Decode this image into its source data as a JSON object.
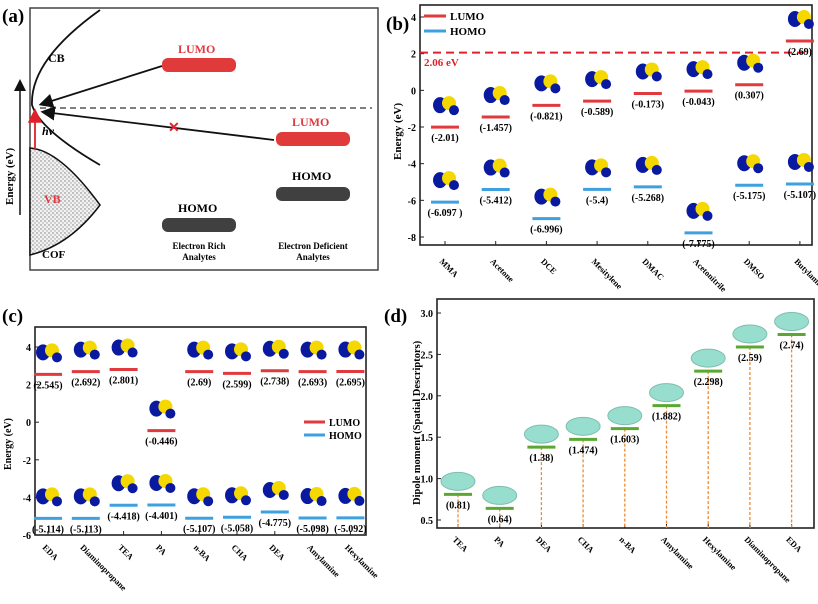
{
  "colors": {
    "lumo": "#e0393e",
    "homo": "#3fa0e0",
    "dipole_bar": "#5aa832",
    "threshold": "#e0202a",
    "orbital_pos": "#f5d800",
    "orbital_neg": "#0a1aa0",
    "surface": "#7fd6c4"
  },
  "panel_a": {
    "label": "(a)",
    "ylabel": "Energy (eV)",
    "cb": "CB",
    "vb": "VB",
    "cof": "COF",
    "hv": "hv",
    "rich_lumo": "LUMO",
    "rich_homo": "HOMO",
    "deficient_lumo": "LUMO",
    "deficient_homo": "HOMO",
    "rich_caption": [
      "Electron Rich",
      "Analytes"
    ],
    "deficient_caption": [
      "Electron Deficient",
      "Analytes"
    ]
  },
  "chart_data": [
    {
      "panel": "(b)",
      "type": "scatter",
      "ylabel": "Energy (eV)",
      "ylim": [
        -8.5,
        4.6
      ],
      "yticks": [
        4,
        2,
        0,
        -2,
        -4,
        -6,
        -8
      ],
      "categories": [
        "MMA",
        "Acetone",
        "DCE",
        "Mesitylene",
        "DMAC",
        "Acetonitrile",
        "DMSO",
        "Butylamine"
      ],
      "legend": {
        "position": "top-left",
        "entries": [
          "LUMO",
          "HOMO"
        ]
      },
      "threshold": {
        "value": 2.06,
        "label": "2.06 eV"
      },
      "series": [
        {
          "name": "LUMO",
          "values": [
            -2.01,
            -1.457,
            -0.821,
            -0.589,
            -0.173,
            -0.043,
            0.307,
            2.69
          ],
          "labels": [
            "(-2.01)",
            "(-1.457)",
            "(-0.821)",
            "(-0.589)",
            "(-0.173)",
            "(-0.043)",
            "(0.307)",
            "(2.69)"
          ]
        },
        {
          "name": "HOMO",
          "values": [
            -6.097,
            -5.412,
            -6.996,
            -5.4,
            -5.268,
            -7.775,
            -5.175,
            -5.107
          ],
          "labels": [
            "(-6.097 )",
            "(-5.412)",
            "(-6.996)",
            "(-5.4)",
            "(-5.268)",
            "(-7.775)",
            "(-5.175)",
            "(-5.107)"
          ]
        }
      ]
    },
    {
      "panel": "(c)",
      "type": "scatter",
      "ylabel": "Energy (eV)",
      "ylim": [
        -6,
        5
      ],
      "yticks": [
        4,
        2,
        0,
        -2,
        -4,
        -6
      ],
      "categories": [
        "EDA",
        "Diaminopropane",
        "TEA",
        "PA",
        "n-BA",
        "CHA",
        "DEA",
        "Amylamine",
        "Hexylamine"
      ],
      "legend": {
        "position": "right",
        "entries": [
          "LUMO",
          "HOMO"
        ]
      },
      "series": [
        {
          "name": "LUMO",
          "values": [
            2.545,
            2.692,
            2.801,
            -0.446,
            2.69,
            2.599,
            2.738,
            2.693,
            2.695
          ],
          "labels": [
            "(2.545)",
            "(2.692)",
            "(2.801)",
            "(-0.446)",
            "(2.69)",
            "(2.599)",
            "(2.738)",
            "(2.693)",
            "(2.695)"
          ]
        },
        {
          "name": "HOMO",
          "values": [
            -5.114,
            -5.113,
            -4.418,
            -4.401,
            -5.107,
            -5.058,
            -4.775,
            -5.098,
            -5.092
          ],
          "labels": [
            "(-5.114)",
            "(-5.113)",
            "(-4.418)",
            "(-4.401)",
            "(-5.107)",
            "(-5.058)",
            "(-4.775)",
            "(-5.098)",
            "(-5.092)"
          ]
        }
      ]
    },
    {
      "panel": "(d)",
      "type": "scatter",
      "ylabel": "Dipole moment  (Spatial Descriptors)",
      "ylim": [
        0.4,
        3.2
      ],
      "yticks": [
        3.0,
        2.5,
        2.0,
        1.5,
        1.0,
        0.5
      ],
      "ytick_labels": [
        "3.0",
        "2.5",
        "2.0",
        "1.5",
        "1.0",
        "0.5"
      ],
      "categories": [
        "TEA",
        "PA",
        "DEA",
        "CHA",
        "n-BA",
        "Amylamine",
        "Hexylamine",
        "Diaminopropane",
        "EDA"
      ],
      "series": [
        {
          "values": [
            0.81,
            0.64,
            1.38,
            1.474,
            1.603,
            1.882,
            2.298,
            2.59,
            2.74
          ],
          "labels": [
            "(0.81)",
            "(0.64)",
            "(1.38)",
            "(1.474)",
            "(1.603)",
            "(1.882)",
            "(2.298)",
            "(2.59)",
            "(2.74)"
          ]
        }
      ]
    }
  ]
}
